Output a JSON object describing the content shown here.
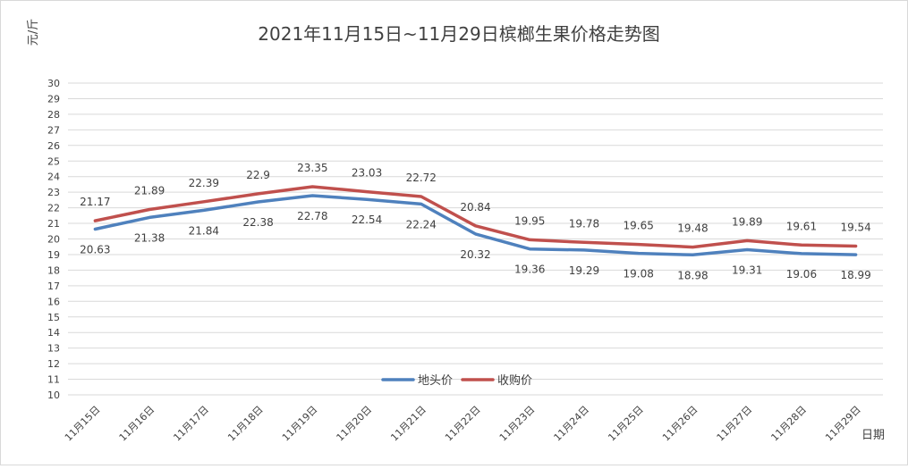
{
  "chart_data": {
    "type": "line",
    "title": "2021年11月15日~11月29日槟榔生果价格走势图",
    "xlabel": "日期",
    "ylabel": "元/斤",
    "categories": [
      "11月15日",
      "11月16日",
      "11月17日",
      "11月18日",
      "11月19日",
      "11月20日",
      "11月21日",
      "11月22日",
      "11月23日",
      "11月24日",
      "11月25日",
      "11月26日",
      "11月27日",
      "11月28日",
      "11月29日"
    ],
    "series": [
      {
        "name": "地头价",
        "color": "#4f81bd",
        "values": [
          20.63,
          21.38,
          21.84,
          22.38,
          22.78,
          22.54,
          22.24,
          20.32,
          19.36,
          19.29,
          19.08,
          18.98,
          19.31,
          19.06,
          18.99
        ],
        "labels": [
          "20.63",
          "21.38",
          "21.84",
          "22.38",
          "22.78",
          "22.54",
          "22.24",
          "20.32",
          "19.36",
          "19.29",
          "19.08",
          "18.98",
          "19.31",
          "19.06",
          "18.99"
        ],
        "label_position": "below"
      },
      {
        "name": "收购价",
        "color": "#c0504d",
        "values": [
          21.17,
          21.89,
          22.39,
          22.9,
          23.35,
          23.03,
          22.72,
          20.84,
          19.95,
          19.78,
          19.65,
          19.48,
          19.89,
          19.61,
          19.54
        ],
        "labels": [
          "21.17",
          "21.89",
          "22.39",
          "22.9",
          "23.35",
          "23.03",
          "22.72",
          "20.84",
          "19.95",
          "19.78",
          "19.65",
          "19.48",
          "19.89",
          "19.61",
          "19.54"
        ],
        "label_position": "above"
      }
    ],
    "ylim": [
      10,
      30
    ],
    "yticks": [
      "10",
      "11",
      "12",
      "13",
      "14",
      "15",
      "16",
      "17",
      "18",
      "19",
      "20",
      "21",
      "22",
      "23",
      "24",
      "25",
      "26",
      "27",
      "28",
      "29",
      "30"
    ],
    "grid": true,
    "legend": "bottom-center"
  }
}
